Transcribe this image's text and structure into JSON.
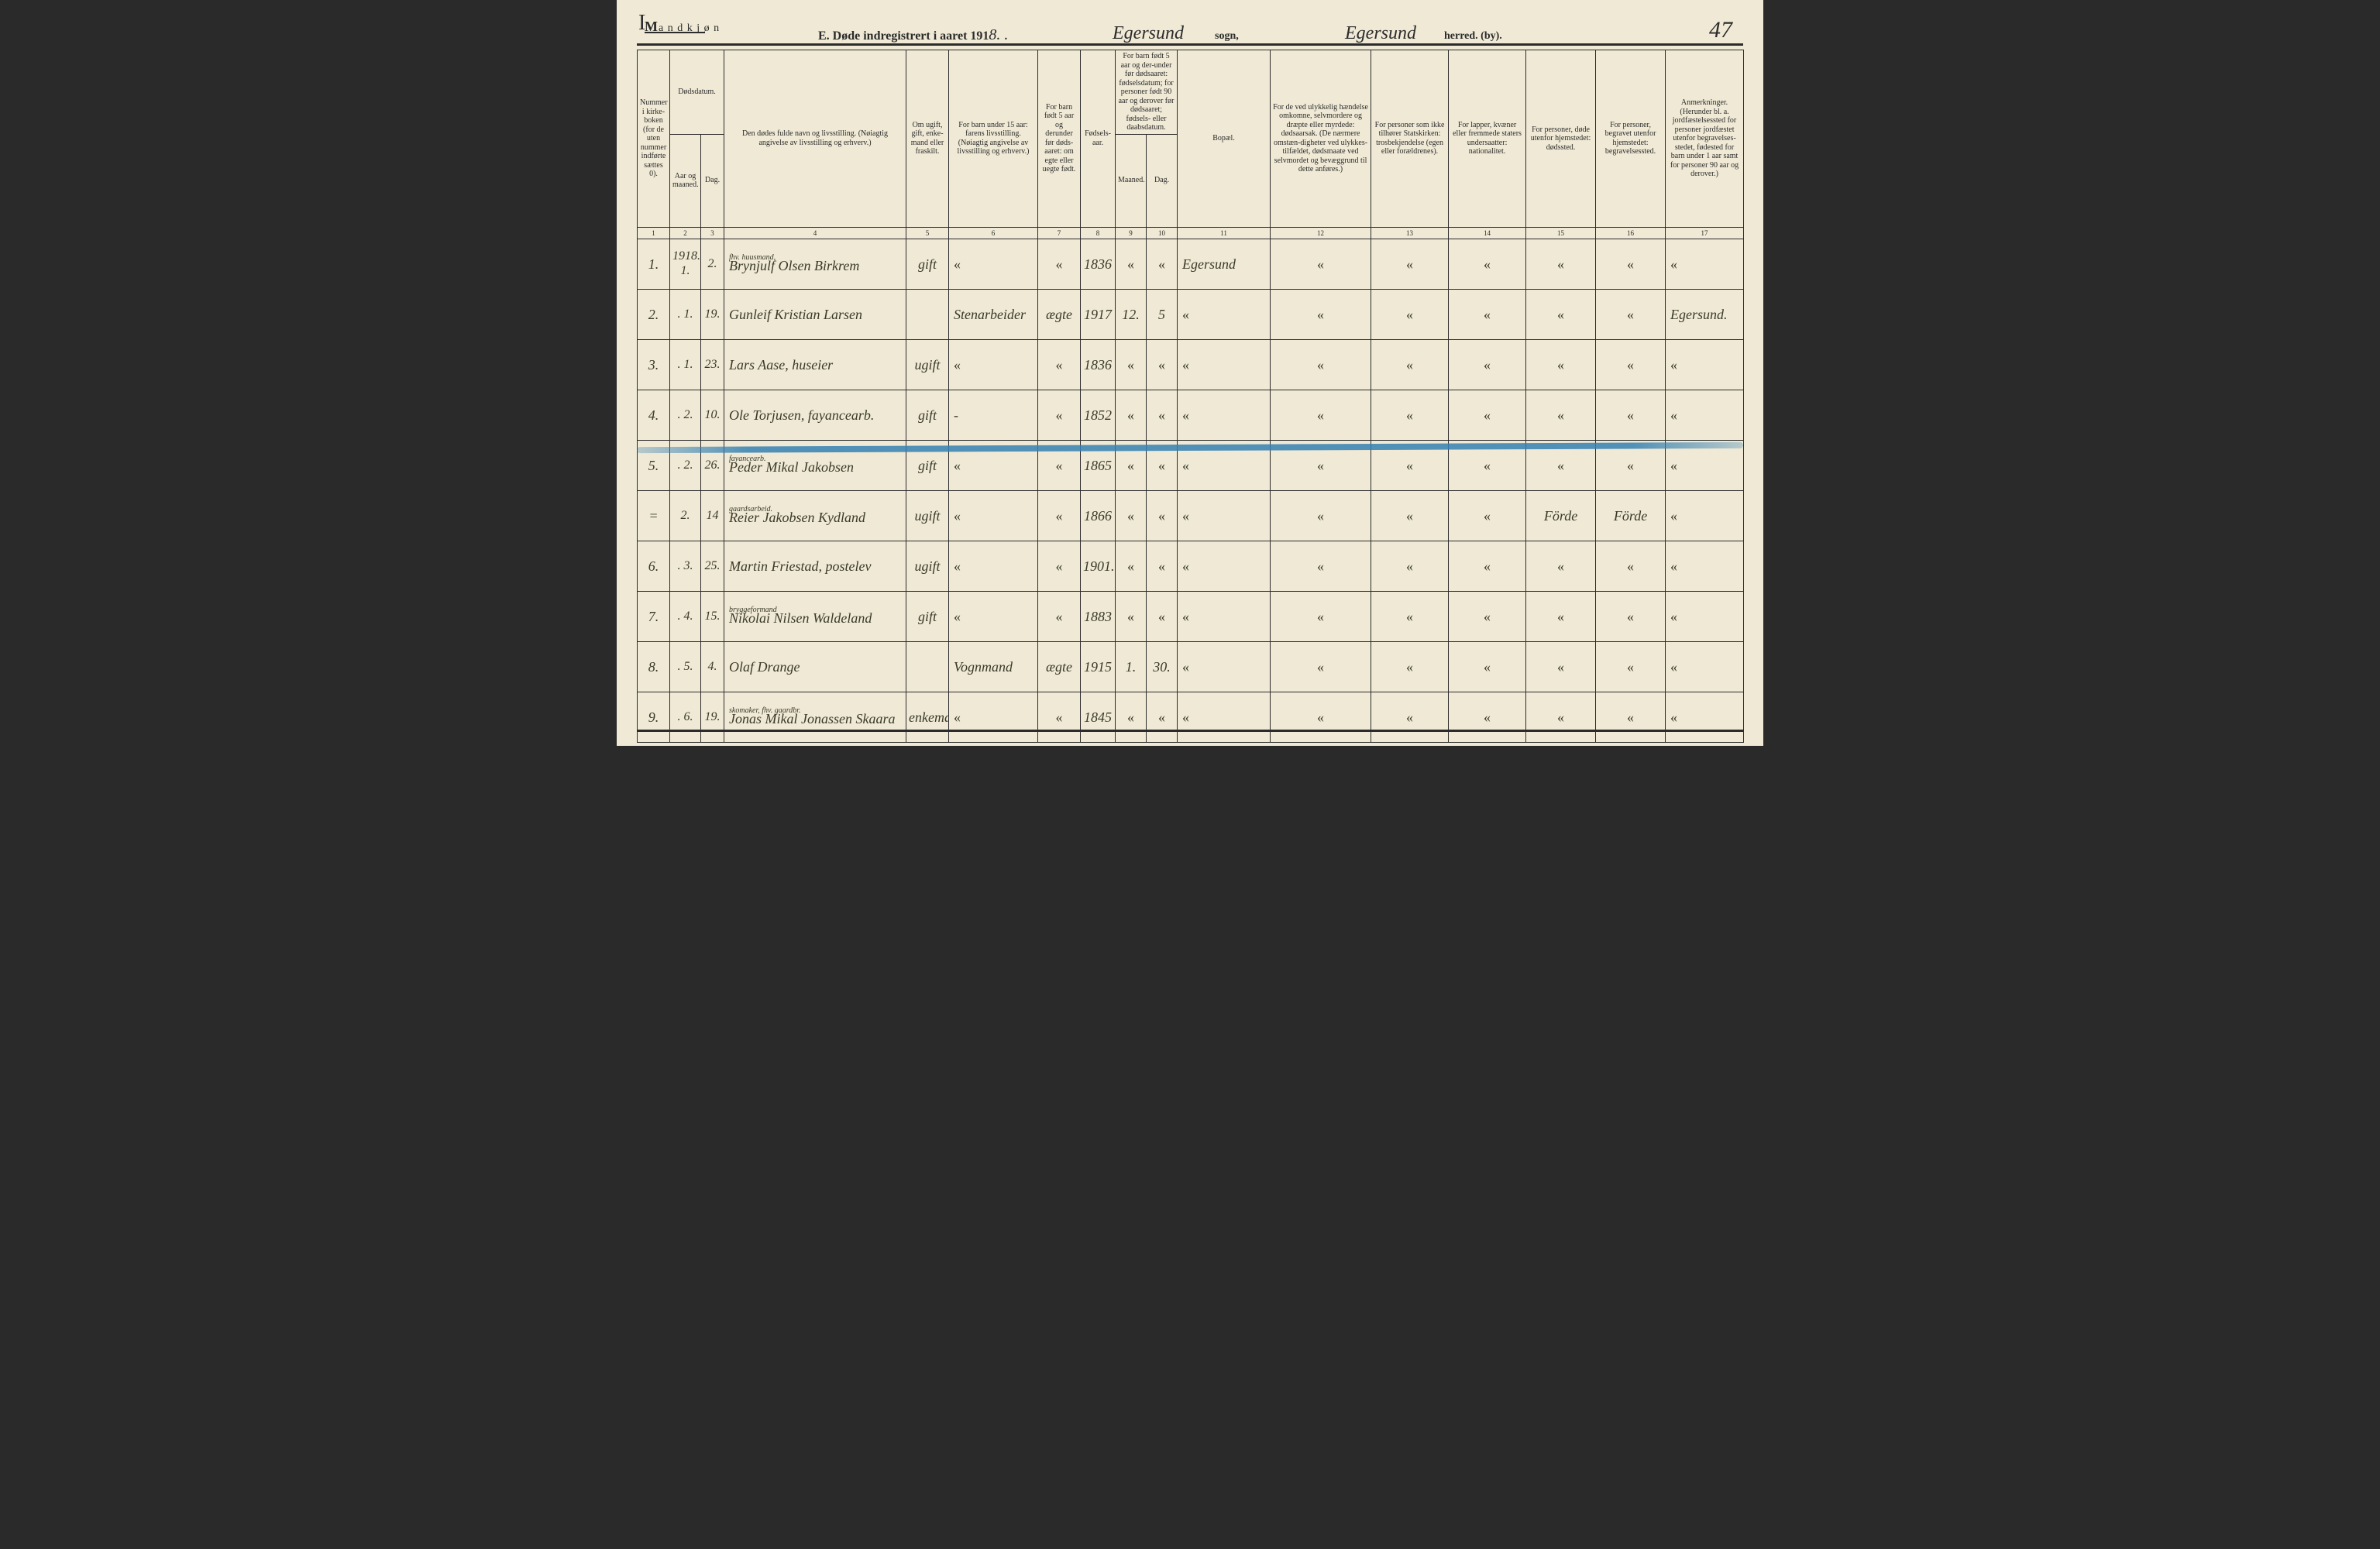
{
  "page": {
    "corner_mark": "I",
    "mandkjon": "Mandkjøn",
    "title_prefix": "E.  Døde indregistrert i aaret 191",
    "title_year_suffix": "8. .",
    "sogn_value": "Egersund",
    "sogn_label": "sogn,",
    "herred_value": "Egersund",
    "herred_label": "herred. (by).",
    "page_number": "47"
  },
  "headers": {
    "1": "Nummer i kirke-boken (for de uten nummer indførte sættes 0).",
    "2_group": "Dødsdatum.",
    "2": "Aar og maaned.",
    "3": "Dag.",
    "4": "Den dødes fulde navn og livsstilling.\n(Nøiagtig angivelse av livsstilling og erhverv.)",
    "5": "Om ugift, gift, enke-mand eller fraskilt.",
    "6": "For barn under 15 aar: farens livsstilling.\n(Nøiagtig angivelse av livsstilling og erhverv.)",
    "7": "For barn født 5 aar og derunder før døds-aaret: om egte eller uegte født.",
    "8": "Fødsels-aar.",
    "9_10_group": "For barn født 5 aar og der-under før dødsaaret: fødselsdatum; for personer født 90 aar og derover før dødsaaret; fødsels- eller daabsdatum.",
    "9": "Maaned.",
    "10": "Dag.",
    "11": "Bopæl.",
    "12": "For de ved ulykkelig hændelse omkomne, selvmordere og dræpte eller myrdede: dødsaarsak.\n(De nærmere omstæn-digheter ved ulykkes-tilfældet, dødsmaate ved selvmordet og bevæggrund til dette anføres.)",
    "13": "For personer som ikke tilhører Statskirken: trosbekjendelse (egen eller forældrenes).",
    "14": "For lapper, kvæner eller fremmede staters undersaatter: nationalitet.",
    "15": "For personer, døde utenfor hjemstedet: dødssted.",
    "16": "For personer, begravet utenfor hjemstedet: begravelsessted.",
    "17": "Anmerkninger.\n(Herunder bl. a. jordfæstelsessted for personer jordfæstet utenfor begravelses-stedet, fødested for barn under 1 aar samt for personer 90 aar og derover.)"
  },
  "colnums": [
    "1",
    "2",
    "3",
    "4",
    "5",
    "6",
    "7",
    "8",
    "9",
    "10",
    "11",
    "12",
    "13",
    "14",
    "15",
    "16",
    "17"
  ],
  "rows": [
    {
      "num": "1.",
      "aar": "1918.\n1.",
      "dag": "2.",
      "name_sup": "fhv. huusmand,",
      "name": "Brynjulf Olsen Birkrem",
      "c5": "gift",
      "c6": "«",
      "c7": "«",
      "c8": "1836",
      "c9": "«",
      "c10": "«",
      "c11": "Egersund",
      "c12": "«",
      "c13": "«",
      "c14": "«",
      "c15": "«",
      "c16": "«",
      "c17": "«"
    },
    {
      "num": "2.",
      "aar": ". 1.",
      "dag": "19.",
      "name_sup": "",
      "name": "Gunleif Kristian Larsen",
      "c5": "",
      "c6": "Stenarbeider",
      "c7": "ægte",
      "c8": "1917",
      "c9": "12.",
      "c10": "5",
      "c11": "«",
      "c12": "«",
      "c13": "«",
      "c14": "«",
      "c15": "«",
      "c16": "«",
      "c17": "Egersund."
    },
    {
      "num": "3.",
      "aar": ". 1.",
      "dag": "23.",
      "name_sup": "",
      "name": "Lars Aase,  huseier",
      "c5": "ugift",
      "c6": "«",
      "c7": "«",
      "c8": "1836",
      "c9": "«",
      "c10": "«",
      "c11": "«",
      "c12": "«",
      "c13": "«",
      "c14": "«",
      "c15": "«",
      "c16": "«",
      "c17": "«"
    },
    {
      "num": "4.",
      "aar": ". 2.",
      "dag": "10.",
      "name_sup": "",
      "name": "Ole Torjusen, fayancearb.",
      "c5": "gift",
      "c6": "-",
      "c7": "«",
      "c8": "1852",
      "c9": "«",
      "c10": "«",
      "c11": "«",
      "c12": "«",
      "c13": "«",
      "c14": "«",
      "c15": "«",
      "c16": "«",
      "c17": "«"
    },
    {
      "num": "5.",
      "aar": ". 2.",
      "dag": "26.",
      "name_sup": "fayancearb.",
      "name": "Peder Mikal Jakobsen",
      "c5": "gift",
      "c6": "«",
      "c7": "«",
      "c8": "1865",
      "c9": "«",
      "c10": "«",
      "c11": "«",
      "c12": "«",
      "c13": "«",
      "c14": "«",
      "c15": "«",
      "c16": "«",
      "c17": "«"
    },
    {
      "num": "=",
      "aar": "2.",
      "dag": "14",
      "name_sup": "gaardsarbeid.",
      "name": "Reier Jakobsen Kydland",
      "c5": "ugift",
      "c6": "«",
      "c7": "«",
      "c8": "1866",
      "c9": "«",
      "c10": "«",
      "c11": "«",
      "c12": "«",
      "c13": "«",
      "c14": "«",
      "c15": "Förde",
      "c16": "Förde",
      "c17": "«"
    },
    {
      "num": "6.",
      "aar": ". 3.",
      "dag": "25.",
      "name_sup": "",
      "name": "Martin Friestad, postelev",
      "c5": "ugift",
      "c6": "«",
      "c7": "«",
      "c8": "1901.",
      "c9": "«",
      "c10": "«",
      "c11": "«",
      "c12": "«",
      "c13": "«",
      "c14": "«",
      "c15": "«",
      "c16": "«",
      "c17": "«"
    },
    {
      "num": "7.",
      "aar": ". 4.",
      "dag": "15.",
      "name_sup": "bryggeformand",
      "name": "Nikolai Nilsen Waldeland",
      "c5": "gift",
      "c6": "«",
      "c7": "«",
      "c8": "1883",
      "c9": "«",
      "c10": "«",
      "c11": "«",
      "c12": "«",
      "c13": "«",
      "c14": "«",
      "c15": "«",
      "c16": "«",
      "c17": "«"
    },
    {
      "num": "8.",
      "aar": ". 5.",
      "dag": "4.",
      "name_sup": "",
      "name": "Olaf Drange",
      "c5": "",
      "c6": "Vognmand",
      "c7": "ægte",
      "c8": "1915",
      "c9": "1.",
      "c10": "30.",
      "c11": "«",
      "c12": "«",
      "c13": "«",
      "c14": "«",
      "c15": "«",
      "c16": "«",
      "c17": "«"
    },
    {
      "num": "9.",
      "aar": ". 6.",
      "dag": "19.",
      "name_sup": "skomaker, fhv. gaardbr.",
      "name": "Jonas Mikal Jonassen Skaara",
      "c5": "enkemd",
      "c6": "«",
      "c7": "«",
      "c8": "1845",
      "c9": "«",
      "c10": "«",
      "c11": "«",
      "c12": "«",
      "c13": "«",
      "c14": "«",
      "c15": "«",
      "c16": "«",
      "c17": "«"
    }
  ],
  "colors": {
    "paper": "#efe9d5",
    "ink": "#2b2b2b",
    "script_ink": "#3a3a2a",
    "blue_pencil": "#3580b2"
  }
}
